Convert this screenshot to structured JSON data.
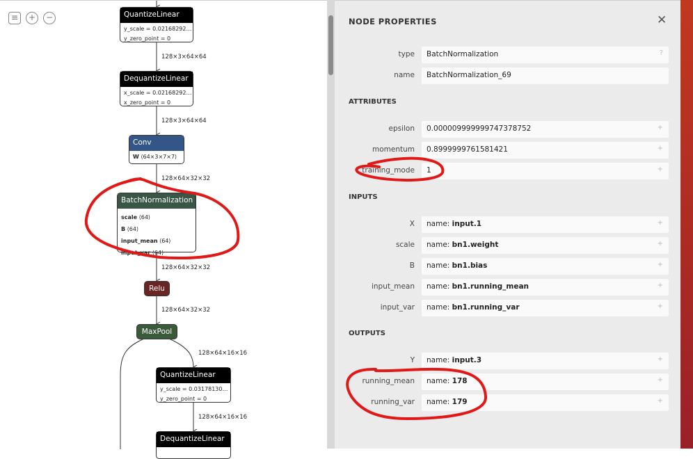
{
  "toolbar": {
    "icons": [
      "sidebar-menu-icon",
      "zoom-in-icon",
      "zoom-out-icon"
    ]
  },
  "graph": {
    "nodes": [
      {
        "op": "QuantizeLinear",
        "color": "#000000",
        "attrs": [
          "y_scale = 0.02168292…",
          "y_zero_point = 0"
        ]
      },
      {
        "op": "DequantizeLinear",
        "color": "#000000",
        "attrs": [
          "x_scale = 0.02168292…",
          "x_zero_point = 0"
        ]
      },
      {
        "op": "Conv",
        "color": "#335588",
        "inputs": [
          {
            "name": "W",
            "shape": "⟨64×3×7×7⟩"
          }
        ]
      },
      {
        "op": "BatchNormalization",
        "color": "#335544",
        "inputs": [
          {
            "name": "scale",
            "shape": "⟨64⟩"
          },
          {
            "name": "B",
            "shape": "⟨64⟩"
          },
          {
            "name": "input_mean",
            "shape": "⟨64⟩"
          },
          {
            "name": "input_var",
            "shape": "⟨64⟩"
          }
        ]
      },
      {
        "op": "Relu",
        "color": "#6b2424"
      },
      {
        "op": "MaxPool",
        "color": "#335533"
      },
      {
        "op": "QuantizeLinear",
        "color": "#000000",
        "attrs": [
          "y_scale = 0.03178130…",
          "y_zero_point = 0"
        ]
      },
      {
        "op": "DequantizeLinear",
        "color": "#000000"
      }
    ],
    "edges": [
      "128×3×64×64",
      "128×3×64×64",
      "128×64×32×32",
      "128×64×32×32",
      "128×64×32×32",
      "128×64×16×16",
      "128×64×16×16"
    ]
  },
  "panel": {
    "title": "NODE PROPERTIES",
    "close": "✕",
    "properties": [
      {
        "label": "type",
        "value": "BatchNormalization",
        "action": "?"
      },
      {
        "label": "name",
        "value": "BatchNormalization_69"
      }
    ],
    "attributes_title": "ATTRIBUTES",
    "attributes": [
      {
        "label": "epsilon",
        "value": "0.000009999999747378752"
      },
      {
        "label": "momentum",
        "value": "0.8999999761581421"
      },
      {
        "label": "training_mode",
        "value": "1"
      }
    ],
    "inputs_title": "INPUTS",
    "inputs": [
      {
        "label": "X",
        "prefix": "name: ",
        "value": "input.1"
      },
      {
        "label": "scale",
        "prefix": "name: ",
        "value": "bn1.weight"
      },
      {
        "label": "B",
        "prefix": "name: ",
        "value": "bn1.bias"
      },
      {
        "label": "input_mean",
        "prefix": "name: ",
        "value": "bn1.running_mean"
      },
      {
        "label": "input_var",
        "prefix": "name: ",
        "value": "bn1.running_var"
      }
    ],
    "outputs_title": "OUTPUTS",
    "outputs": [
      {
        "label": "Y",
        "prefix": "name: ",
        "value": "input.3"
      },
      {
        "label": "running_mean",
        "prefix": "name: ",
        "value": "178"
      },
      {
        "label": "running_var",
        "prefix": "name: ",
        "value": "179"
      }
    ],
    "expand": "+"
  },
  "annotation_color": "#e01818"
}
